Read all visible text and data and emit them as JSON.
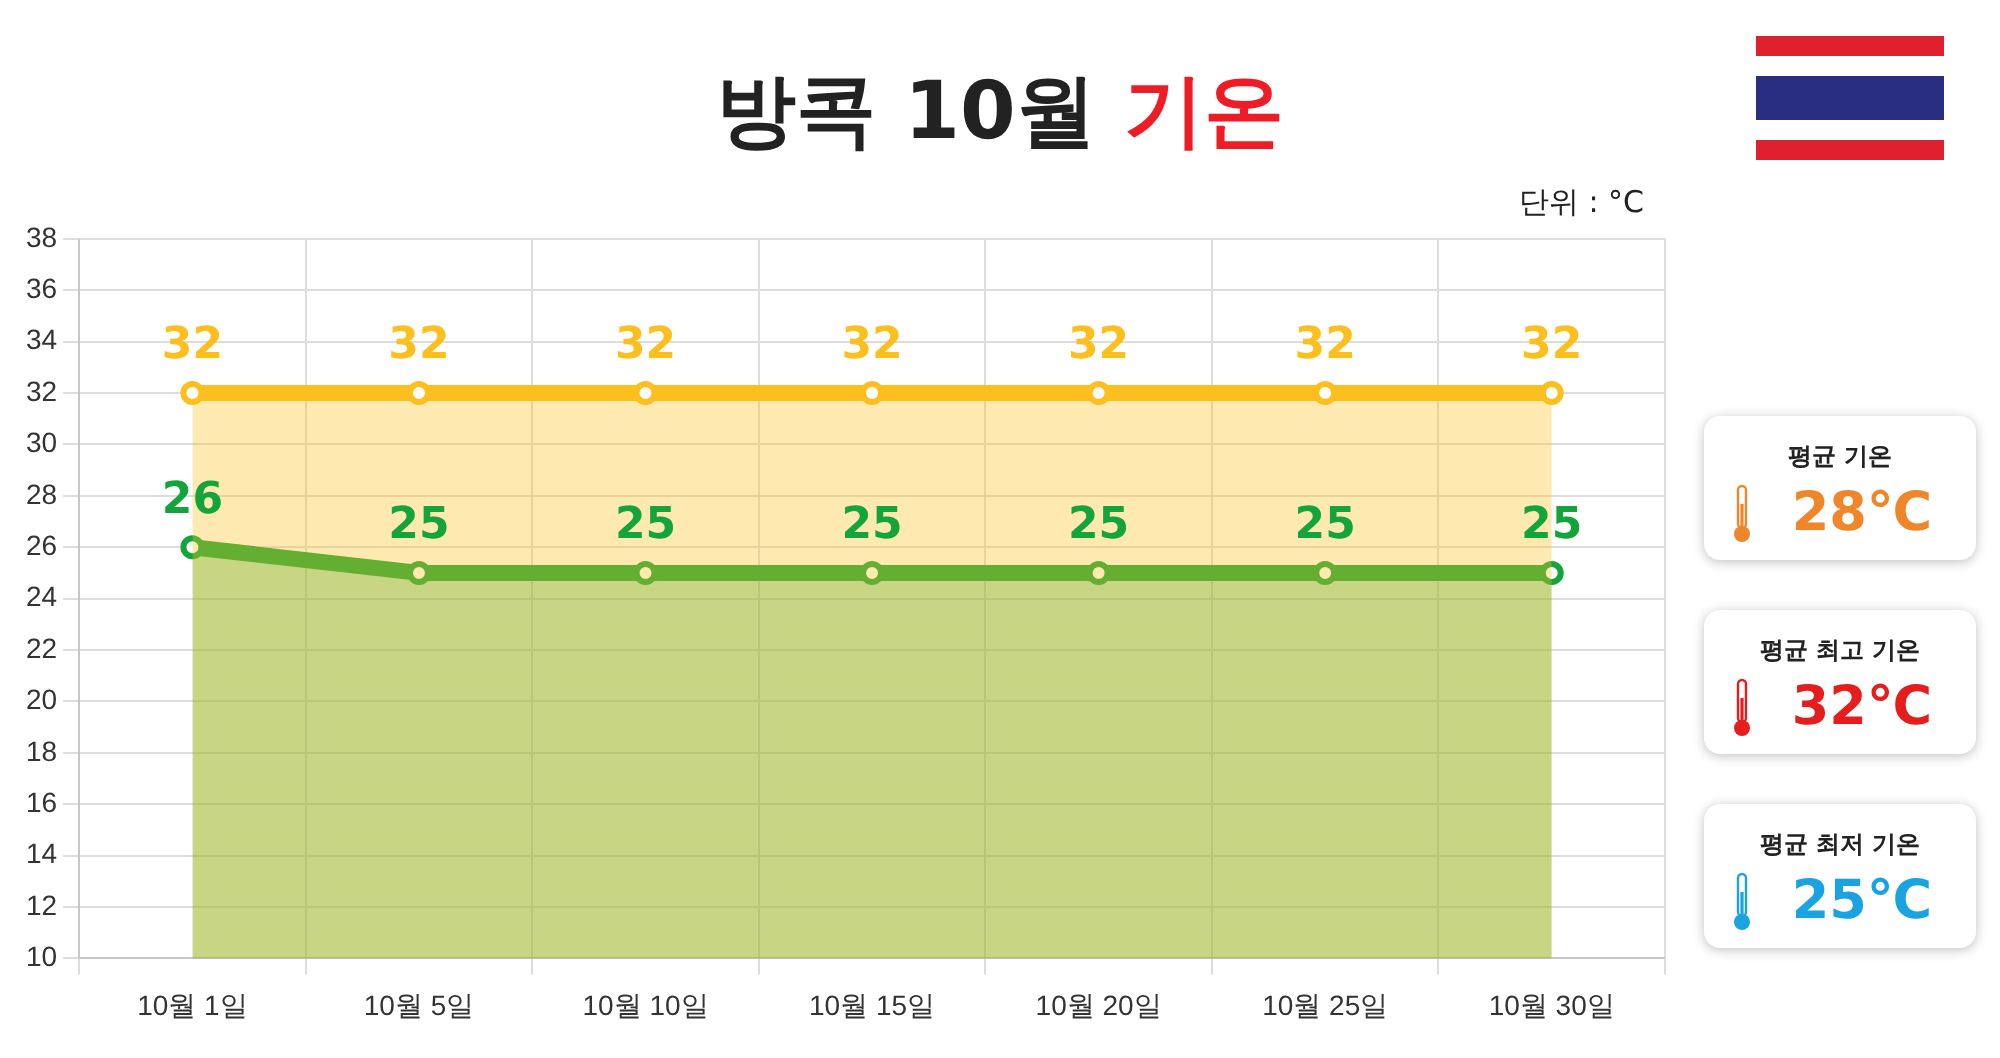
{
  "chart_data": {
    "type": "area",
    "title": "방콕 10월 기온",
    "categories": [
      "10월 1일",
      "10월 5일",
      "10월 10일",
      "10월 15일",
      "10월 20일",
      "10월 25일",
      "10월 30일"
    ],
    "series": [
      {
        "color": "#fcbf1e",
        "values": [
          32,
          32,
          32,
          32,
          32,
          32,
          32
        ]
      },
      {
        "color": "#13a53c",
        "values": [
          26,
          25,
          25,
          25,
          25,
          25,
          25
        ]
      }
    ],
    "ylim": [
      10,
      38
    ],
    "yticks": [
      10,
      12,
      14,
      16,
      18,
      20,
      22,
      24,
      26,
      28,
      30,
      32,
      34,
      36,
      38
    ],
    "grid": true,
    "legend": false,
    "marker": "circle",
    "data_labels": true,
    "annotations": [
      "단위 : °C",
      "평균 기온",
      "28℃",
      "평균 최고 기온",
      "32℃",
      "평균 최저 기온",
      "25℃"
    ]
  }
}
